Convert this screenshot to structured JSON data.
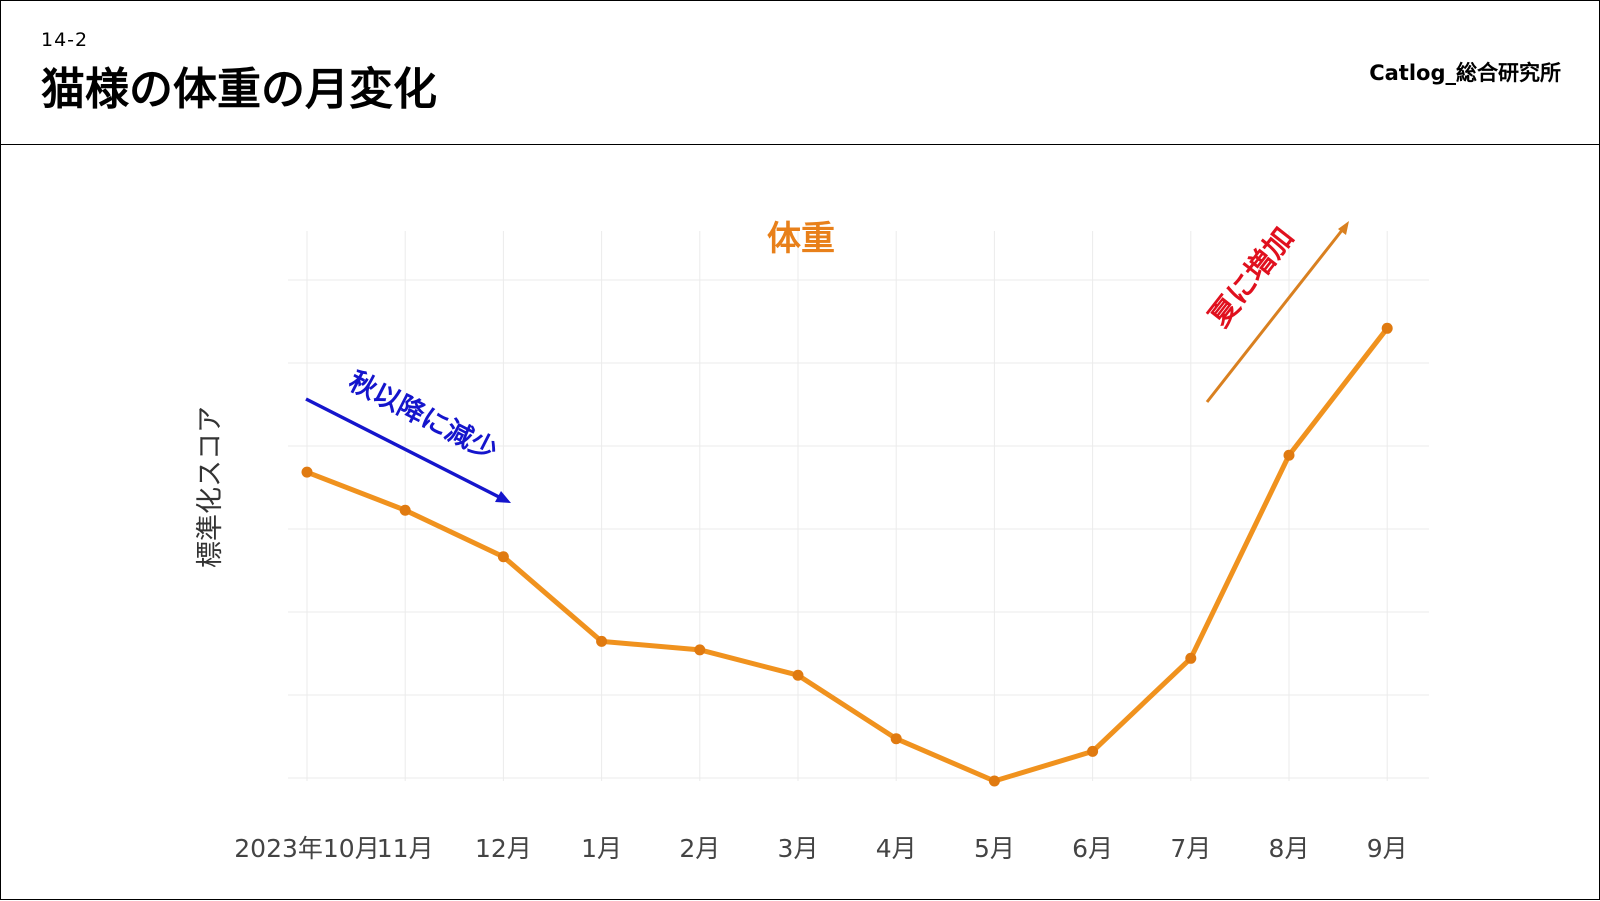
{
  "header": {
    "slide_number": "14-2",
    "title": "猫様の体重の月変化",
    "brand": "Catlog_総合研究所"
  },
  "colors": {
    "line": "#F0921E",
    "point": "#E07A10",
    "title": "#E8801A",
    "annotation_decrease": "#1515CC",
    "annotation_increase": "#E0101E",
    "arrow_increase": "#D98020",
    "grid": "#EBEBEB"
  },
  "chart_data": {
    "type": "line",
    "title": "体重",
    "xlabel": "",
    "ylabel": "標準化スコア",
    "categories": [
      "2023年10月",
      "11月",
      "12月",
      "1月",
      "2月",
      "3月",
      "4月",
      "5月",
      "6月",
      "7月",
      "8月",
      "9月"
    ],
    "series": [
      {
        "values": [
          0.61,
          0.52,
          0.41,
          0.21,
          0.19,
          0.13,
          -0.02,
          -0.12,
          -0.05,
          0.17,
          0.65,
          0.95
        ]
      }
    ],
    "ylim": [
      -0.12,
      1.18
    ],
    "y_tick_labels_shown": false,
    "grid": true,
    "annotations": [
      {
        "text": "秋以降に減少",
        "color": "#1515CC",
        "arrow": "down-right"
      },
      {
        "text": "夏に増加",
        "color": "#E0101E",
        "arrow": "up-right"
      }
    ]
  }
}
